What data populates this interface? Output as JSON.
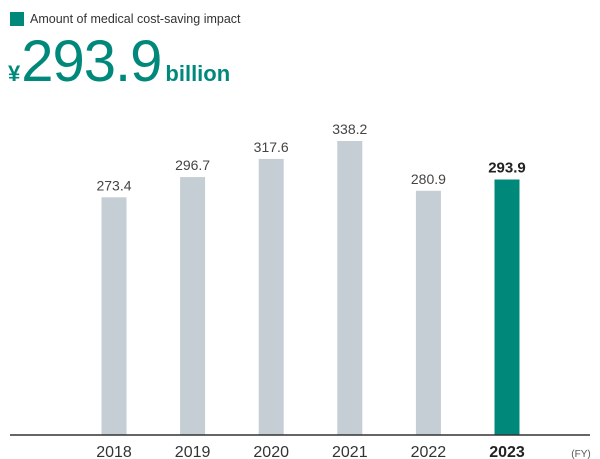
{
  "legend": {
    "label": "Amount of medical cost-saving impact",
    "color": "#00897b"
  },
  "headline": {
    "currency": "¥",
    "value": "293.9",
    "unit": "billion"
  },
  "chart_data": {
    "type": "bar",
    "categories": [
      "2018",
      "2019",
      "2020",
      "2021",
      "2022",
      "2023"
    ],
    "values": [
      273.4,
      296.7,
      317.6,
      338.2,
      280.9,
      293.9
    ],
    "value_labels": [
      "273.4",
      "296.7",
      "317.6",
      "338.2",
      "280.9",
      "293.9"
    ],
    "highlight_index": 5,
    "bar_color": "#c5ced4",
    "highlight_color": "#00897b",
    "axis_unit": "(FY)",
    "ylim": [
      0,
      338.2
    ],
    "grid": false,
    "legend_position": "top-left"
  }
}
